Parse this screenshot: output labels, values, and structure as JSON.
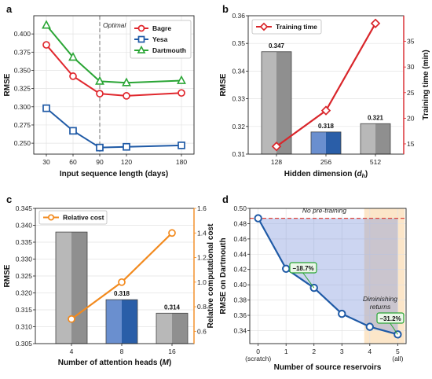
{
  "chart_data": [
    {
      "panel": "a",
      "type": "line",
      "x": [
        30,
        60,
        90,
        120,
        180
      ],
      "xticks": [
        "30",
        "60",
        "90",
        "120",
        "180"
      ],
      "xlabel": "Input sequence length (days)",
      "ylabel": "RMSE",
      "ylim": [
        0.235,
        0.425
      ],
      "yticks": [
        "0.250",
        "0.275",
        "0.300",
        "0.325",
        "0.350",
        "0.375",
        "0.400"
      ],
      "series": [
        {
          "name": "Bagre",
          "values": [
            0.385,
            0.342,
            0.318,
            0.315,
            0.319
          ],
          "color": "#e0282e",
          "marker": "circle"
        },
        {
          "name": "Yesa",
          "values": [
            0.298,
            0.267,
            0.244,
            0.245,
            0.247
          ],
          "color": "#1f5aa6",
          "marker": "square"
        },
        {
          "name": "Dartmouth",
          "values": [
            0.412,
            0.368,
            0.335,
            0.333,
            0.336
          ],
          "color": "#2aa535",
          "marker": "triangle"
        }
      ],
      "annotation": {
        "text": "Optimal",
        "x": 90
      },
      "legend": "top-right",
      "grid": true
    },
    {
      "panel": "b",
      "type": "bar",
      "categories": [
        "128",
        "256",
        "512"
      ],
      "values": [
        0.347,
        0.318,
        0.321
      ],
      "value_labels": [
        "0.347",
        "0.318",
        "0.321"
      ],
      "bar_colors": [
        "#8f8f8f",
        "#2a5ea8",
        "#8f8f8f"
      ],
      "xlabel": "Hidden dimension (",
      "xlabel_var": "d",
      "xlabel_sub": "h",
      "xlabel_end": ")",
      "ylabel": "RMSE",
      "ylim": [
        0.31,
        0.36
      ],
      "yticks": [
        "0.31",
        "0.32",
        "0.33",
        "0.34",
        "0.35",
        "0.36"
      ],
      "secondary": {
        "name": "Training time",
        "values": [
          14.5,
          21.5,
          38.5
        ],
        "ylabel": "Training time (min)",
        "ylim": [
          13,
          40
        ],
        "yticks": [
          "15",
          "20",
          "25",
          "30",
          "35"
        ],
        "color": "#d9262b",
        "marker": "diamond"
      },
      "legend": "top-left",
      "grid": true
    },
    {
      "panel": "c",
      "type": "bar",
      "categories": [
        "4",
        "8",
        "16"
      ],
      "values": [
        0.338,
        0.318,
        0.314
      ],
      "value_labels": [
        "",
        "0.318",
        "0.314"
      ],
      "bar_colors": [
        "#8f8f8f",
        "#2a5ea8",
        "#8f8f8f"
      ],
      "xlabel": "Number of attention heads (",
      "xlabel_var": "M",
      "xlabel_end": ")",
      "ylabel": "RMSE",
      "ylim": [
        0.305,
        0.345
      ],
      "yticks": [
        "0.305",
        "0.310",
        "0.315",
        "0.320",
        "0.325",
        "0.330",
        "0.335",
        "0.340",
        "0.345"
      ],
      "secondary": {
        "name": "Relative cost",
        "values": [
          0.7,
          1.0,
          1.4
        ],
        "ylabel": "Relative computational cost",
        "ylim": [
          0.5,
          1.6
        ],
        "yticks": [
          "0.6",
          "0.8",
          "1.0",
          "1.2",
          "1.4",
          "1.6"
        ],
        "color": "#f28a1e",
        "marker": "circle"
      },
      "legend": "top-left",
      "grid": true
    },
    {
      "panel": "d",
      "type": "area",
      "x": [
        0,
        1,
        2,
        3,
        4,
        5
      ],
      "xticks": [
        "0",
        "1",
        "2",
        "3",
        "4",
        "5"
      ],
      "xsub": [
        "(scratch)",
        "",
        "",
        "",
        "",
        "(all)"
      ],
      "values": [
        0.487,
        0.421,
        0.396,
        0.362,
        0.345,
        0.335
      ],
      "baseline": 0.487,
      "baseline_label": "No pre-training",
      "xlabel": "Number of source reservoirs",
      "ylabel": "RMSE on Dartmouth",
      "ylim": [
        0.323,
        0.5
      ],
      "yticks": [
        "0.34",
        "0.36",
        "0.38",
        "0.40",
        "0.42",
        "0.44",
        "0.46",
        "0.48",
        "0.50"
      ],
      "shade_x": [
        3.8,
        5.25
      ],
      "shade_label": [
        "Diminishing",
        "returns"
      ],
      "callouts": [
        {
          "x": 2,
          "text": "−18.7%"
        },
        {
          "x": 5,
          "text": "−31.2%"
        }
      ],
      "color": "#1f5aa6",
      "grid": true
    }
  ],
  "panel_labels": [
    "a",
    "b",
    "c",
    "d"
  ],
  "colors": {
    "gray_bar": "#8f8f8f",
    "blue_bar": "#2a5ea8",
    "red": "#d9262b",
    "orange": "#f28a1e",
    "green": "#2aa535",
    "blue": "#1f5aa6"
  }
}
